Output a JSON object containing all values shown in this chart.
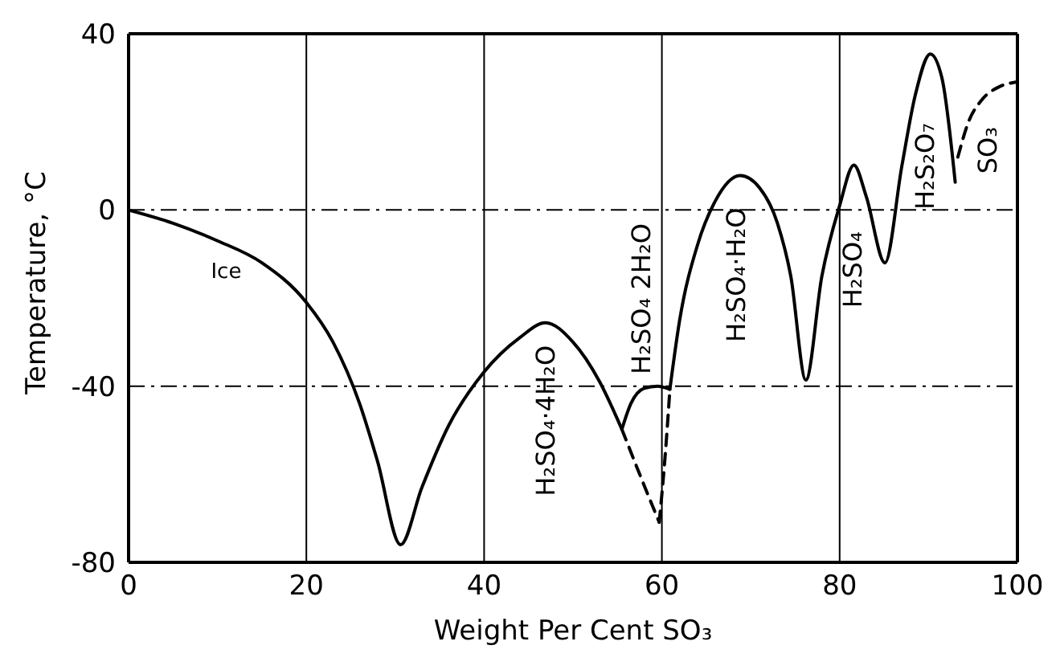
{
  "chart_data": {
    "type": "line",
    "xlabel": "Weight Per Cent SO₃",
    "ylabel": "Temperature, °C",
    "xlim": [
      0,
      100
    ],
    "xticks": [
      0,
      20,
      40,
      60,
      80,
      100
    ],
    "ylim": [
      -80,
      40
    ],
    "yticks": [
      -80,
      -40,
      0,
      40
    ],
    "grid": true,
    "marker": "none",
    "line_style": "solid",
    "series": [
      {
        "color": "#000000",
        "x": [
          0,
          5,
          10,
          15,
          20,
          23,
          26,
          28,
          30.6,
          33,
          36,
          39.9,
          44,
          46.9,
          50,
          53,
          55.5
        ],
        "values": [
          0,
          -3,
          -7,
          -12,
          -21,
          -30,
          -44,
          -57,
          -76,
          -63,
          -49,
          -37,
          -29,
          -25.6,
          -30,
          -39,
          -49.8
        ]
      },
      {
        "color": "#000000",
        "line_style": "dashed",
        "x": [
          55.5,
          57.5,
          59.7
        ],
        "values": [
          -49.8,
          -60,
          -70.9
        ]
      },
      {
        "color": "#000000",
        "x": [
          55.5,
          56.5,
          58,
          59.5,
          60.9
        ],
        "values": [
          -49.8,
          -44,
          -40.5,
          -40,
          -40.7
        ]
      },
      {
        "color": "#000000",
        "line_style": "dashed",
        "x": [
          59.7,
          60.4,
          60.9
        ],
        "values": [
          -70.9,
          -55,
          -40.7
        ]
      },
      {
        "color": "#000000",
        "x": [
          60.9,
          62,
          64,
          66,
          68.8,
          71,
          73,
          74.5,
          76.2,
          78,
          80,
          81.6,
          83,
          85.1,
          87,
          88.5,
          90.2,
          91.5,
          93
        ],
        "values": [
          -40.7,
          -25,
          -8,
          2,
          7.8,
          5,
          -3,
          -15,
          -38.6,
          -15,
          1,
          10.2,
          3,
          -12,
          10,
          26,
          35.4,
          30,
          6.3
        ]
      },
      {
        "color": "#000000",
        "line_style": "dashed",
        "x": [
          93.3,
          94.5,
          96,
          98,
          99.8
        ],
        "values": [
          12,
          20,
          25,
          28,
          29
        ]
      }
    ],
    "annotations": [
      "Ice",
      "H₂SO₄·4H₂O",
      "H₂SO₄ 2H₂O",
      "H₂SO₄·H₂O",
      "H₂SO₄",
      "H₂S₂O₇",
      "SO₃"
    ]
  }
}
